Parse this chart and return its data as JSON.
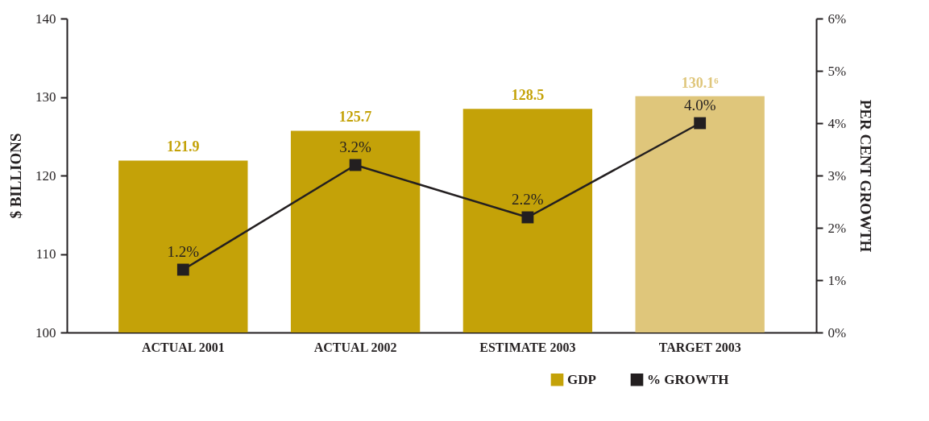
{
  "chart_data": {
    "type": "bar",
    "categories": [
      "ACTUAL 2001",
      "ACTUAL 2002",
      "ESTIMATE 2003",
      "TARGET 2003"
    ],
    "ylabel": "$ BILLIONS",
    "y2label": "PER CENT GROWTH",
    "ylim": [
      100,
      140
    ],
    "yticks": [
      100,
      110,
      120,
      130,
      140
    ],
    "y2lim": [
      0,
      6
    ],
    "y2ticks": [
      {
        "value": 0,
        "label": "0%"
      },
      {
        "value": 1,
        "label": "1%"
      },
      {
        "value": 2,
        "label": "2%"
      },
      {
        "value": 3,
        "label": "3%"
      },
      {
        "value": 4,
        "label": "4%"
      },
      {
        "value": 5,
        "label": "5%"
      },
      {
        "value": 6,
        "label": "6%"
      }
    ],
    "legend": "bottom right",
    "grid": false,
    "marker": "square",
    "line_style": "solid",
    "series": [
      {
        "name": "GDP",
        "color": "#c4a208",
        "colors": [
          "#c4a208",
          "#c4a208",
          "#c4a208",
          "#dfc67b"
        ],
        "values": [
          121.9,
          125.7,
          128.5,
          130.1
        ],
        "value_labels": [
          "121.9",
          "125.7",
          "128.5",
          "130.1⁶"
        ]
      },
      {
        "name": "% GROWTH",
        "type": "line",
        "axis": "y2",
        "color": "#231f20",
        "values": [
          1.2,
          3.2,
          2.2,
          4.0
        ],
        "value_labels": [
          "1.2%",
          "3.2%",
          "2.2%",
          "4.0%"
        ]
      }
    ]
  }
}
